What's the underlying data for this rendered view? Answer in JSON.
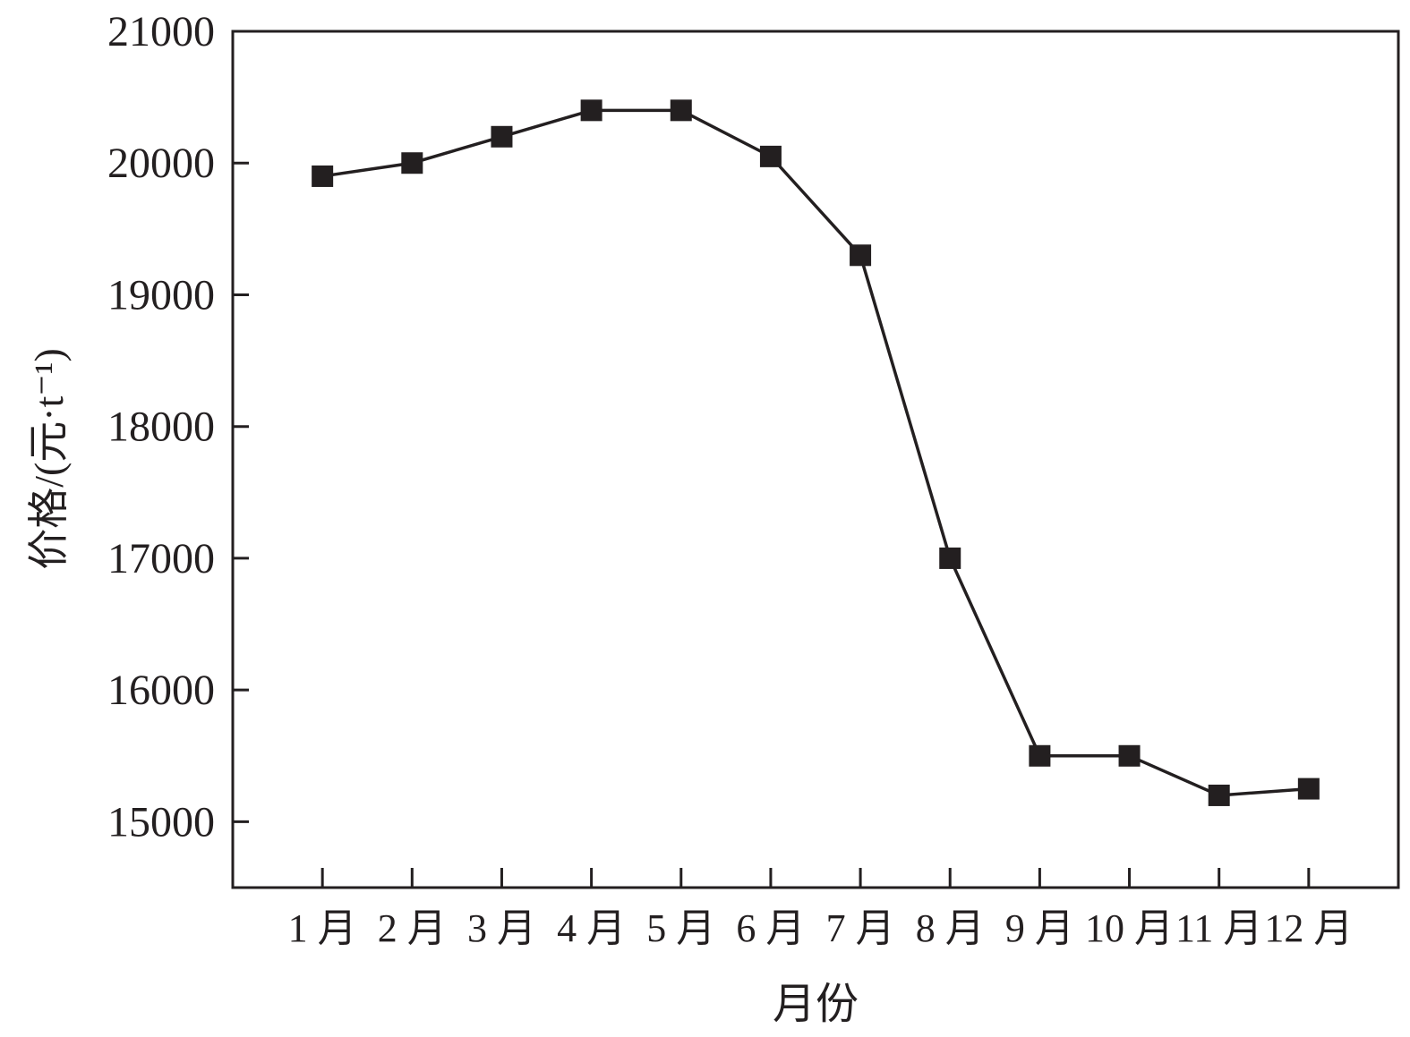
{
  "chart_data": {
    "type": "line",
    "title": "",
    "xlabel": "月份",
    "ylabel": "价格/(元·t⁻¹)",
    "categories": [
      "1 月",
      "2 月",
      "3 月",
      "4 月",
      "5 月",
      "6 月",
      "7 月",
      "8 月",
      "9 月",
      "10 月",
      "11 月",
      "12 月"
    ],
    "series": [
      {
        "values": [
          19900,
          20000,
          20200,
          20400,
          20400,
          20050,
          19300,
          17000,
          15500,
          15500,
          15200,
          15250
        ],
        "marker": "square"
      }
    ],
    "yticks": [
      15000,
      16000,
      17000,
      18000,
      19000,
      20000,
      21000
    ],
    "ylim": [
      14500,
      21000
    ],
    "xlim": [
      0,
      13
    ],
    "grid": false,
    "legend": "none",
    "color": "#231f20"
  }
}
